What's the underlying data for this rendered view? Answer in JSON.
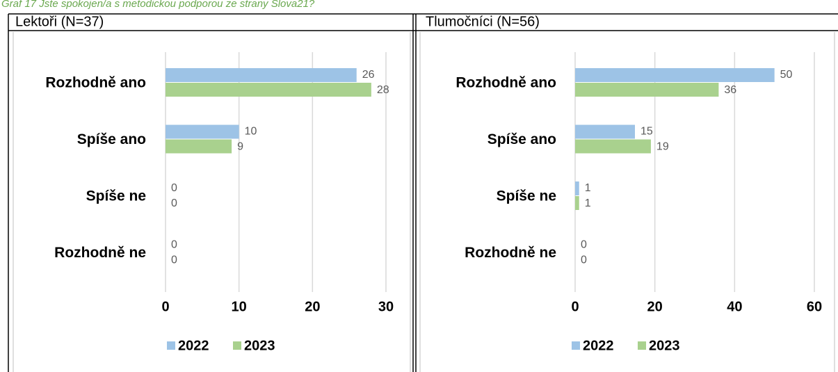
{
  "caption": "Graf 17 Jste spokojen/a s metodickou podporou ze strany Slova21?",
  "chart_data": [
    {
      "type": "bar",
      "orientation": "horizontal",
      "title": "Lektoři (N=37)",
      "categories": [
        "Rozhodně ano",
        "Spíše ano",
        "Spíše ne",
        "Rozhodně ne"
      ],
      "series": [
        {
          "name": "2022",
          "color": "#9dc3e6",
          "values": [
            26,
            10,
            0,
            0
          ]
        },
        {
          "name": "2023",
          "color": "#a9d18e",
          "values": [
            28,
            9,
            0,
            0
          ]
        }
      ],
      "xlim": [
        0,
        30
      ],
      "xticks": [
        0,
        10,
        20,
        30
      ],
      "grid": true,
      "legend": "bottom"
    },
    {
      "type": "bar",
      "orientation": "horizontal",
      "title": "Tlumočníci (N=56)",
      "categories": [
        "Rozhodně ano",
        "Spíše ano",
        "Spíše ne",
        "Rozhodně ne"
      ],
      "series": [
        {
          "name": "2022",
          "color": "#9dc3e6",
          "values": [
            50,
            15,
            1,
            0
          ]
        },
        {
          "name": "2023",
          "color": "#a9d18e",
          "values": [
            36,
            19,
            1,
            0
          ]
        }
      ],
      "xlim": [
        0,
        60
      ],
      "xticks": [
        0,
        20,
        40,
        60
      ],
      "grid": true,
      "legend": "bottom"
    }
  ]
}
